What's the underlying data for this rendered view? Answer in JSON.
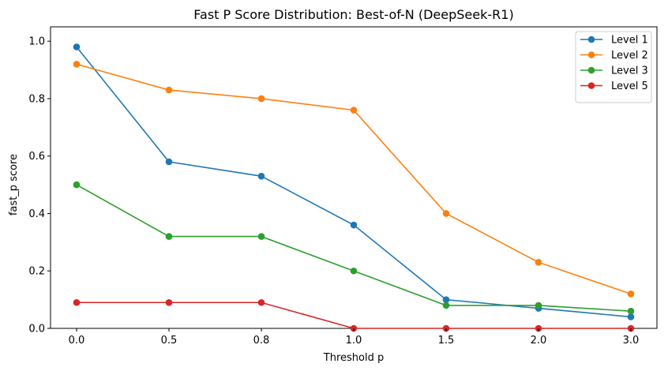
{
  "chart_data": {
    "type": "line",
    "title": "Fast P Score Distribution: Best-of-N (DeepSeek-R1)",
    "xlabel": "Threshold p",
    "ylabel": "fast_p score",
    "categories": [
      "0.0",
      "0.5",
      "0.8",
      "1.0",
      "1.5",
      "2.0",
      "3.0"
    ],
    "ylim": [
      0,
      1.05
    ],
    "yticks": [
      "0.0",
      "0.2",
      "0.4",
      "0.6",
      "0.8",
      "1.0"
    ],
    "grid": false,
    "legend_position": "top-right",
    "series": [
      {
        "name": "Level 1",
        "color": "#1f77b4",
        "values": [
          0.98,
          0.58,
          0.53,
          0.36,
          0.1,
          0.07,
          0.04
        ]
      },
      {
        "name": "Level 2",
        "color": "#ff7f0e",
        "values": [
          0.92,
          0.83,
          0.8,
          0.76,
          0.4,
          0.23,
          0.12
        ]
      },
      {
        "name": "Level 3",
        "color": "#2ca02c",
        "values": [
          0.5,
          0.32,
          0.32,
          0.2,
          0.08,
          0.08,
          0.06
        ]
      },
      {
        "name": "Level 5",
        "color": "#d62728",
        "values": [
          0.09,
          0.09,
          0.09,
          0.0,
          0.0,
          0.0,
          0.0
        ]
      }
    ]
  }
}
